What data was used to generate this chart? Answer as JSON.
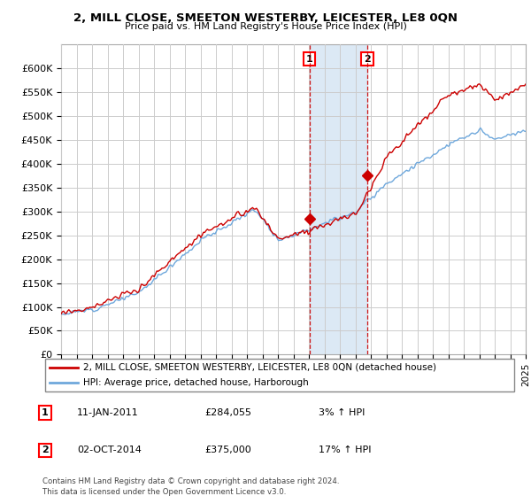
{
  "title": "2, MILL CLOSE, SMEETON WESTERBY, LEICESTER, LE8 0QN",
  "subtitle": "Price paid vs. HM Land Registry's House Price Index (HPI)",
  "ylim": [
    0,
    650000
  ],
  "yticks": [
    0,
    50000,
    100000,
    150000,
    200000,
    250000,
    300000,
    350000,
    400000,
    450000,
    500000,
    550000,
    600000
  ],
  "ytick_labels": [
    "£0",
    "£50K",
    "£100K",
    "£150K",
    "£200K",
    "£250K",
    "£300K",
    "£350K",
    "£400K",
    "£450K",
    "£500K",
    "£550K",
    "£600K"
  ],
  "hpi_color": "#6fa8dc",
  "price_color": "#cc0000",
  "vline_color": "#cc0000",
  "span_color": "#dce9f5",
  "grid_color": "#cccccc",
  "background_color": "#ffffff",
  "marker1_x": 2011.04,
  "marker2_x": 2014.78,
  "marker1_y": 284055,
  "marker2_y": 375000,
  "legend_entries": [
    "2, MILL CLOSE, SMEETON WESTERBY, LEICESTER, LE8 0QN (detached house)",
    "HPI: Average price, detached house, Harborough"
  ],
  "table_rows": [
    {
      "num": "1",
      "date": "11-JAN-2011",
      "price": "£284,055",
      "change": "3% ↑ HPI"
    },
    {
      "num": "2",
      "date": "02-OCT-2014",
      "price": "£375,000",
      "change": "17% ↑ HPI"
    }
  ],
  "footer": "Contains HM Land Registry data © Crown copyright and database right 2024.\nThis data is licensed under the Open Government Licence v3.0.",
  "xmin": 1995,
  "xmax": 2025
}
